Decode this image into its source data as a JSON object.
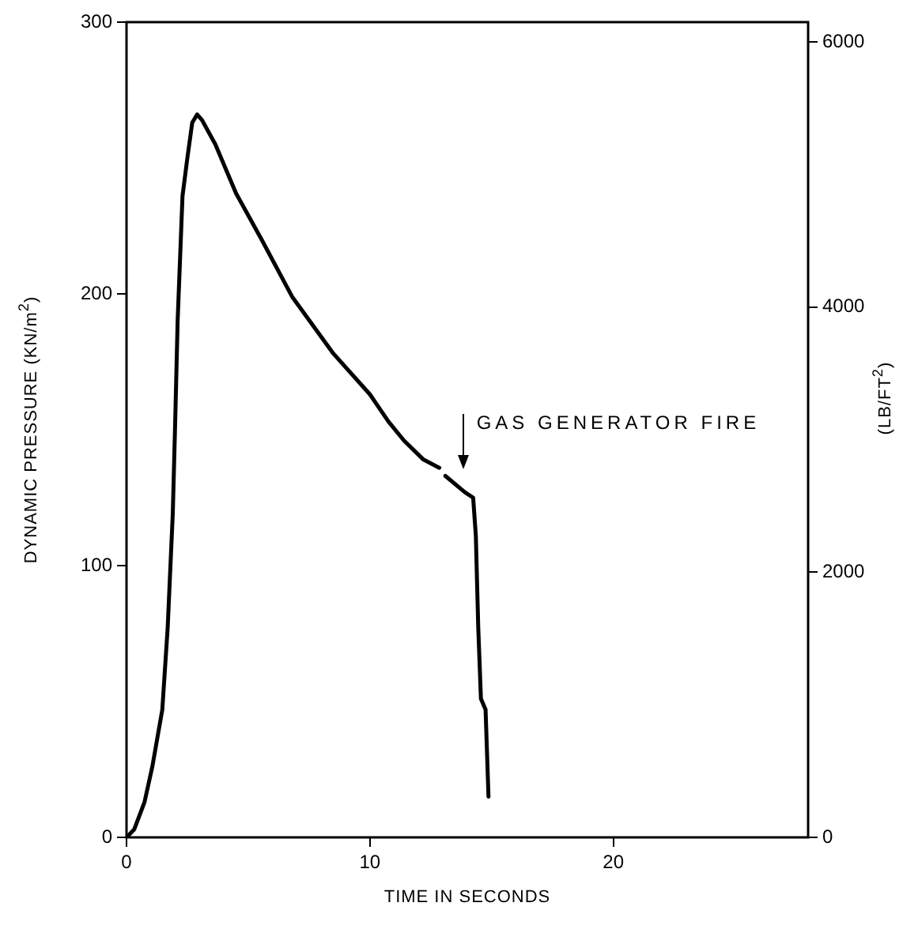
{
  "chart_data": {
    "type": "line",
    "xlabel": "TIME IN SECONDS",
    "ylabel": "DYNAMIC PRESSURE (KN/m$^{2}$)",
    "y2label": "(LB/FT$^{2}$)",
    "xlim": [
      0,
      28
    ],
    "xticks": [
      0,
      10,
      20
    ],
    "ylim": [
      0,
      300
    ],
    "yticks": [
      0,
      100,
      200,
      300
    ],
    "y2lim": [
      0,
      6150
    ],
    "y2ticks": [
      0,
      2000,
      4000,
      6000
    ],
    "grid": false,
    "legend": false,
    "marker": "none",
    "line_style": "solid",
    "series": [
      {
        "color": "#000000",
        "x": [
          0,
          0.32,
          0.74,
          1.06,
          1.47,
          1.69,
          1.9,
          2.0,
          2.1,
          2.3,
          2.5,
          2.7,
          2.9,
          3.1,
          3.65,
          4.5,
          5.55,
          6.8,
          8.5,
          10.0,
          10.76,
          11.4,
          12.2,
          12.85,
          13.0,
          13.1,
          13.9,
          14.24,
          14.35,
          14.45,
          14.56,
          14.75,
          14.87
        ],
        "values": [
          0,
          3,
          13,
          26,
          47,
          77,
          119,
          153,
          190,
          236,
          250,
          263,
          266,
          264,
          255,
          237,
          220,
          199,
          178,
          163,
          153,
          146,
          139,
          136,
          null,
          133,
          127,
          125,
          111,
          77,
          51,
          47,
          15
        ]
      }
    ],
    "annotations": [
      "GAS GENERATOR FIRE"
    ]
  }
}
